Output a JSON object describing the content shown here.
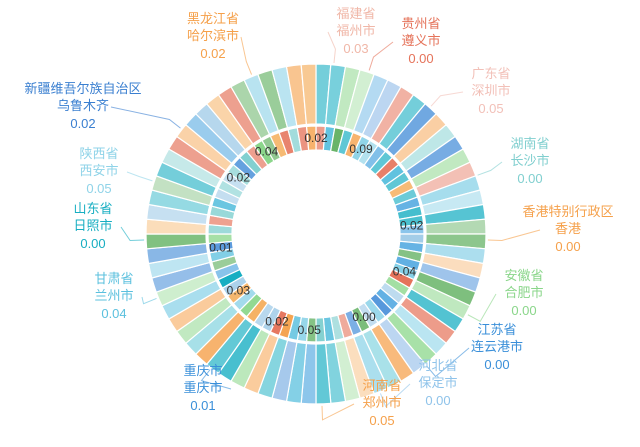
{
  "chart_data": {
    "type": "pie",
    "variant": "nested-donut",
    "colors": [
      "#5bc0de",
      "#e5735a",
      "#4a90d9",
      "#5aad5a",
      "#80cfcf",
      "#17aec2",
      "#f5a04a",
      "#8ad68a",
      "#4da6e0",
      "#f5b060",
      "#a2cce8",
      "#8fd3e8"
    ],
    "outer_ring": [
      {
        "region": "黑龙江省",
        "city": "哈尔滨市",
        "value": 0.02,
        "color": "#f5a04a",
        "label_side": "left"
      },
      {
        "region": "福建省",
        "city": "福州市",
        "value": 0.03,
        "color": "#f0b7a8",
        "label_side": "right"
      },
      {
        "region": "贵州省",
        "city": "遵义市",
        "value": 0.0,
        "color": "#e5735a",
        "label_side": "right"
      },
      {
        "region": "广东省",
        "city": "深圳市",
        "value": 0.05,
        "color": "#f2c0b8",
        "label_side": "right"
      },
      {
        "region": "湖南省",
        "city": "长沙市",
        "value": 0.0,
        "color": "#80cfcf",
        "label_side": "right"
      },
      {
        "region": "香港特别行政区",
        "city": "香港",
        "value": 0.0,
        "color": "#f5a04a",
        "label_side": "right"
      },
      {
        "region": "安徽省",
        "city": "合肥市",
        "value": 0.0,
        "color": "#8ad68a",
        "label_side": "right"
      },
      {
        "region": "江苏省",
        "city": "连云港市",
        "value": 0.0,
        "color": "#3a8fd9",
        "label_side": "right"
      },
      {
        "region": "河北省",
        "city": "保定市",
        "value": 0.0,
        "color": "#8fc3ea",
        "label_side": "right"
      },
      {
        "region": "河南省",
        "city": "郑州市",
        "value": 0.05,
        "color": "#f5a04a",
        "label_side": "right"
      },
      {
        "region": "重庆市",
        "city": "重庆市",
        "value": 0.01,
        "color": "#3a8fd9",
        "label_side": "left"
      },
      {
        "region": "甘肃省",
        "city": "兰州市",
        "value": 0.04,
        "color": "#5bc0de",
        "label_side": "left"
      },
      {
        "region": "山东省",
        "city": "日照市",
        "value": 0.0,
        "color": "#17aec2",
        "label_side": "left"
      },
      {
        "region": "陕西省",
        "city": "西安市",
        "value": 0.05,
        "color": "#8fd3e8",
        "label_side": "left"
      },
      {
        "region": "新疆维吾尔族自治区",
        "city": "乌鲁木齐",
        "value": 0.02,
        "color": "#3a7fd0",
        "label_side": "left"
      }
    ],
    "inner_ring": [
      {
        "value": 0.02,
        "angle": 0
      },
      {
        "value": 0.09,
        "angle": 28
      },
      {
        "value": 0.02,
        "angle": 85
      },
      {
        "value": 0.04,
        "angle": 113
      },
      {
        "value": 0.0,
        "angle": 150
      },
      {
        "value": 0.05,
        "angle": 184
      },
      {
        "value": 0.02,
        "angle": 204
      },
      {
        "value": 0.03,
        "angle": 234
      },
      {
        "value": 0.01,
        "angle": 262
      },
      {
        "value": 0.02,
        "angle": 306
      },
      {
        "value": 0.04,
        "angle": 329
      }
    ]
  }
}
